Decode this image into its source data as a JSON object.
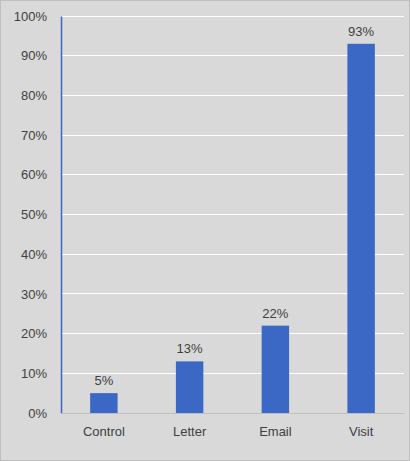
{
  "chart_data": {
    "type": "bar",
    "categories": [
      "Control",
      "Letter",
      "Email",
      "Visit"
    ],
    "values": [
      5,
      13,
      22,
      93
    ],
    "value_labels": [
      "5%",
      "13%",
      "22%",
      "93%"
    ],
    "data_labels": true,
    "color": "#3a68c4",
    "ylim": [
      0,
      100
    ],
    "yticks": [
      {
        "value": 0,
        "label": "0%"
      },
      {
        "value": 10,
        "label": "10%"
      },
      {
        "value": 20,
        "label": "20%"
      },
      {
        "value": 30,
        "label": "30%"
      },
      {
        "value": 40,
        "label": "40%"
      },
      {
        "value": 50,
        "label": "50%"
      },
      {
        "value": 60,
        "label": "60%"
      },
      {
        "value": 70,
        "label": "70%"
      },
      {
        "value": 80,
        "label": "80%"
      },
      {
        "value": 90,
        "label": "90%"
      },
      {
        "value": 100,
        "label": "100%"
      }
    ],
    "grid": true
  }
}
